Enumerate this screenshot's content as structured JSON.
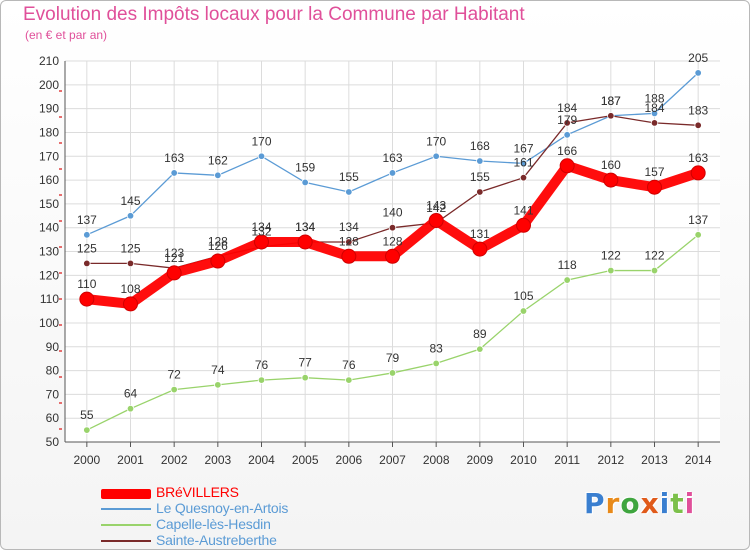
{
  "title": "Evolution des Impôts locaux pour la Commune par Habitant",
  "subtitle": "(en € et par an)",
  "chart_data": {
    "type": "line",
    "title": "Evolution des Impôts locaux pour la Commune par Habitant",
    "subtitle": "(en € et par an)",
    "xlabel": "",
    "ylabel": "",
    "x": [
      2000,
      2001,
      2002,
      2003,
      2004,
      2005,
      2006,
      2007,
      2008,
      2009,
      2010,
      2011,
      2012,
      2013,
      2014
    ],
    "ylim": [
      50,
      210
    ],
    "yticks": [
      50,
      60,
      70,
      80,
      90,
      100,
      110,
      120,
      130,
      140,
      150,
      160,
      170,
      180,
      190,
      200,
      210
    ],
    "grid": true,
    "legend_position": "bottom-left",
    "series": [
      {
        "name": "Le Quesnoy-en-Artois",
        "color": "#5b9bd5",
        "values": [
          137,
          145,
          163,
          162,
          170,
          159,
          155,
          163,
          170,
          168,
          167,
          179,
          187,
          188,
          205
        ],
        "labels": [
          "137",
          "145",
          "163",
          "162",
          "170",
          "159",
          "155",
          "163",
          "170",
          "168",
          "167",
          "179",
          "187",
          "188",
          "205"
        ]
      },
      {
        "name": "Capelle-lès-Hesdin",
        "color": "#99d36b",
        "values": [
          55,
          64,
          72,
          74,
          76,
          77,
          76,
          79,
          83,
          89,
          105,
          118,
          122,
          122,
          137
        ],
        "labels": [
          "55",
          "64",
          "72",
          "74",
          "76",
          "77",
          "76",
          "79",
          "83",
          "89",
          "105",
          "118",
          "122",
          "122",
          "137"
        ]
      },
      {
        "name": "Sainte-Austreberthe",
        "color": "#7a2a2a",
        "values": [
          125,
          125,
          123,
          128,
          132,
          134,
          134,
          140,
          142,
          155,
          161,
          184,
          187,
          184,
          183
        ],
        "labels": [
          "125",
          "125",
          "123",
          "128",
          "132",
          "134",
          "134",
          "140",
          "142",
          "155",
          "161",
          "184",
          "187",
          "184",
          "183"
        ]
      },
      {
        "name": "BRéVILLERS",
        "color": "#ff0000",
        "values": [
          110,
          108,
          121,
          126,
          134,
          134,
          128,
          128,
          143,
          131,
          141,
          166,
          160,
          157,
          163
        ],
        "labels": [
          "110",
          "108",
          "121",
          "126",
          "134",
          "134",
          "128",
          "128",
          "143",
          "131",
          "141",
          "166",
          "160",
          "157",
          "163"
        ]
      }
    ]
  },
  "legend": [
    {
      "name": "BRéVILLERS",
      "color": "#ff0000"
    },
    {
      "name": "Le Quesnoy-en-Artois",
      "color": "#5b9bd5"
    },
    {
      "name": "Capelle-lès-Hesdin",
      "color": "#99d36b"
    },
    {
      "name": "Sainte-Austreberthe",
      "color": "#7a2a2a"
    }
  ],
  "logo": {
    "letters": [
      "P",
      "r",
      "o",
      "x",
      "i",
      "t",
      "i"
    ],
    "colors": [
      "#3a7fd0",
      "#e88a1a",
      "#3fa53f",
      "#e05a1a",
      "#3a7fd0",
      "#7cc04a",
      "#e0509a"
    ]
  }
}
